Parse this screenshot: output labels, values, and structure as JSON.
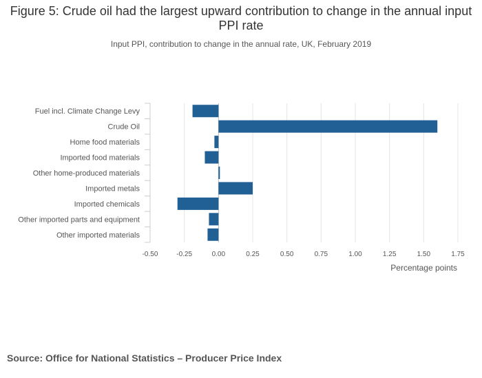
{
  "chart_data": {
    "type": "bar",
    "orientation": "horizontal",
    "title": "Figure 5: Crude oil had the largest upward contribution to change in the annual input PPI rate",
    "subtitle": "Input PPI, contribution to change in the annual rate, UK, February 2019",
    "categories": [
      "Fuel incl. Climate Change Levy",
      "Crude Oil",
      "Home food materials",
      "Imported food materials",
      "Other home-produced materials",
      "Imported metals",
      "Imported chemicals",
      "Other imported parts and equipment",
      "Other imported materials"
    ],
    "values": [
      -0.19,
      1.6,
      -0.03,
      -0.1,
      0.01,
      0.25,
      -0.3,
      -0.07,
      -0.08
    ],
    "xlabel": "Percentage points",
    "xlim": [
      -0.5,
      1.75
    ],
    "xticks": [
      "-0.50",
      "-0.25",
      "0.00",
      "0.25",
      "0.50",
      "0.75",
      "1.00",
      "1.25",
      "1.50",
      "1.75"
    ],
    "grid": true,
    "bar_color": "#206095",
    "source": "Source: Office for National Statistics – Producer Price Index"
  }
}
